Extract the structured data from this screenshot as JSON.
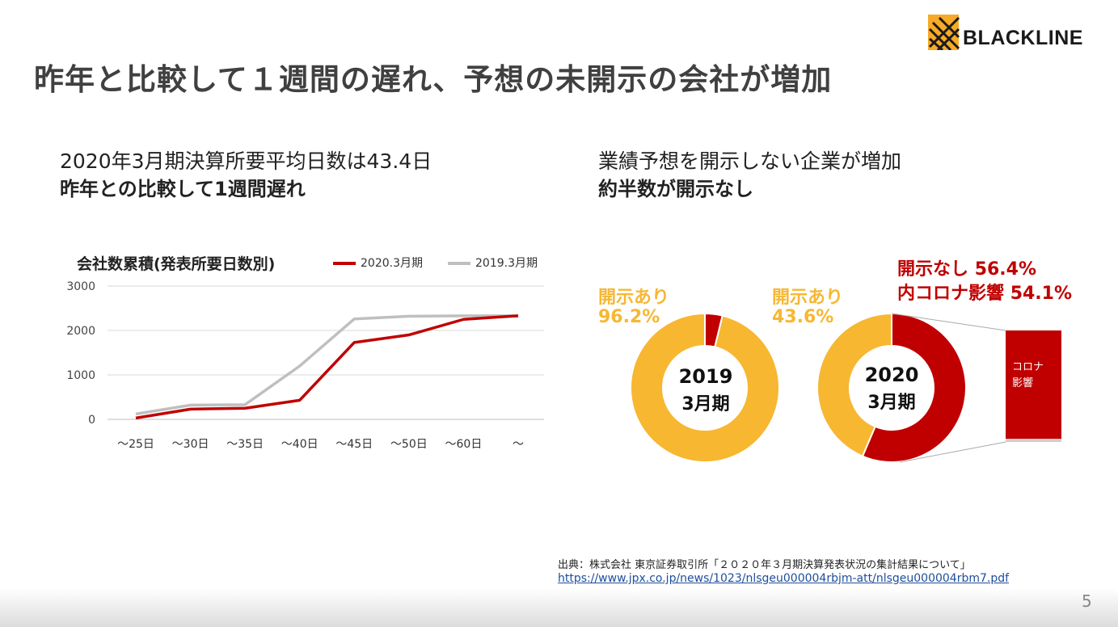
{
  "slide": {
    "title": "昨年と比較して１週間の遅れ、予想の未開示の会社が増加",
    "logo_text": "BLACKLINE",
    "page_number": "5"
  },
  "left_panel": {
    "subtitle_line1": "2020年3月期決算所要平均日数は43.4日",
    "subtitle_line2": "昨年との比較して1週間遅れ"
  },
  "right_panel": {
    "subtitle_line1": "業績予想を開示しない企業が増加",
    "subtitle_line2": "約半数が開示なし"
  },
  "source": {
    "text": "出典：株式会社 東京証券取引所「２０２０年３月期決算発表状況の集計結果について」",
    "url": "https://www.jpx.co.jp/news/1023/nlsgeu000004rbjm-att/nlsgeu000004rbm7.pdf"
  },
  "colors": {
    "red": "#c00000",
    "gray": "#bfbfbf",
    "orange": "#f7b731",
    "grid": "#d9d9d9"
  },
  "chart_data": [
    {
      "type": "line",
      "title": "会社数累積(発表所要日数別)",
      "categories": [
        "～25日",
        "～30日",
        "～35日",
        "～40日",
        "～45日",
        "～50日",
        "～60日",
        "～"
      ],
      "series": [
        {
          "name": "2020.3月期",
          "values": [
            30,
            230,
            250,
            430,
            1730,
            1900,
            2250,
            2330
          ],
          "color": "#c00000"
        },
        {
          "name": "2019.3月期",
          "values": [
            120,
            320,
            330,
            1200,
            2260,
            2320,
            2330,
            2330
          ],
          "color": "#bfbfbf"
        }
      ],
      "ylim": [
        0,
        3000
      ],
      "yticks": [
        "0",
        "1000",
        "2000",
        "3000"
      ],
      "grid": true,
      "legend": "top"
    },
    {
      "type": "pie",
      "center_label": [
        "2019",
        "3月期"
      ],
      "slices": [
        {
          "label": "開示あり",
          "value": 96.2,
          "value_text": "96.2%",
          "color": "#f7b731"
        },
        {
          "label": "開示なし",
          "value": 3.8,
          "color": "#c00000"
        }
      ]
    },
    {
      "type": "pie",
      "center_label": [
        "2020",
        "3月期"
      ],
      "slices": [
        {
          "label": "開示あり",
          "value": 43.6,
          "value_text": "43.6%",
          "color": "#f7b731"
        },
        {
          "label": "開示なし",
          "value": 56.4,
          "value_text": "56.4%",
          "color": "#c00000"
        }
      ],
      "annotation": "内コロナ影響",
      "annotation_value": "54.1%",
      "breakout_label": [
        "コロナ",
        "影響"
      ],
      "breakout_share_of_undisclosed": 54.1
    }
  ]
}
